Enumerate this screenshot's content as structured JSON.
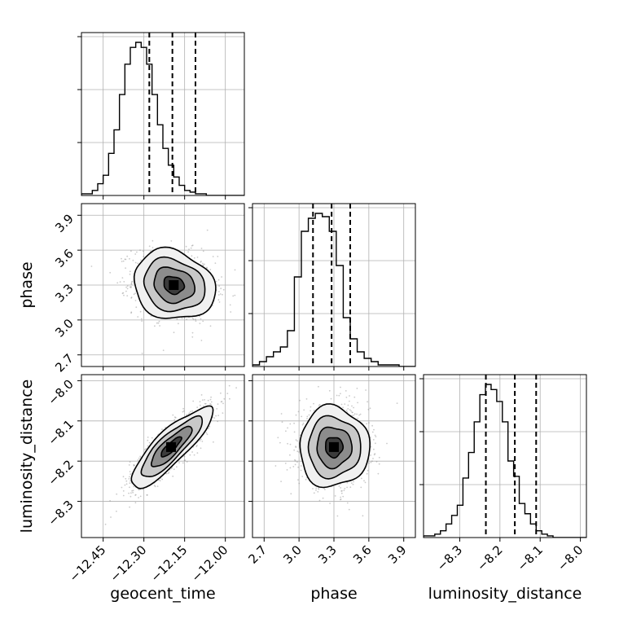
{
  "chart_data": {
    "type": "corner",
    "parameters": [
      {
        "key": "geocent_time",
        "label": "geocent_time",
        "range": [
          -12.53,
          -11.93
        ],
        "ticks": [
          -12.45,
          -12.3,
          -12.15,
          -12.0
        ],
        "tick_labels": [
          "−12.45",
          "−12.30",
          "−12.15",
          "−12.00"
        ],
        "quantiles": [
          -12.28,
          -12.195,
          -12.11
        ],
        "histogram": {
          "bin_start": -12.53,
          "bin_width": 0.02,
          "counts": [
            1,
            1,
            3,
            7,
            12,
            25,
            39,
            60,
            78,
            88,
            91,
            88,
            78,
            60,
            42,
            28,
            18,
            11,
            6,
            3,
            2,
            1,
            1,
            0,
            0,
            0,
            0,
            0,
            0,
            0
          ]
        }
      },
      {
        "key": "phase",
        "label": "phase",
        "range": [
          2.6,
          4.0
        ],
        "ticks": [
          2.7,
          3.0,
          3.3,
          3.6,
          3.9
        ],
        "tick_labels": [
          "2.7",
          "3.0",
          "3.3",
          "3.6",
          "3.9"
        ],
        "quantiles": [
          3.12,
          3.28,
          3.44
        ],
        "histogram": {
          "bin_start": 2.6,
          "bin_width": 0.06,
          "counts": [
            1,
            3,
            6,
            9,
            12,
            22,
            55,
            83,
            91,
            94,
            92,
            83,
            62,
            30,
            17,
            9,
            5,
            3,
            1,
            1,
            1,
            0,
            0,
            0
          ]
        }
      },
      {
        "key": "luminosity_distance",
        "label": "luminosity_distance",
        "range": [
          -8.39,
          -7.985
        ],
        "ticks": [
          -8.3,
          -8.2,
          -8.1,
          -8.0
        ],
        "tick_labels": [
          "−8.3",
          "−8.2",
          "−8.1",
          "−8.0"
        ],
        "quantiles": [
          -8.235,
          -8.163,
          -8.11
        ],
        "histogram": {
          "bin_start": -8.39,
          "bin_width": 0.014,
          "counts": [
            1,
            1,
            2,
            4,
            8,
            13,
            19,
            35,
            50,
            68,
            84,
            90,
            87,
            80,
            68,
            45,
            36,
            20,
            14,
            8,
            4,
            2,
            1,
            0,
            0,
            0,
            0,
            0,
            0
          ]
        }
      }
    ],
    "pairs": [
      {
        "x": "geocent_time",
        "y": "phase",
        "center": [
          -12.19,
          3.3
        ],
        "sigma": [
          0.075,
          0.15
        ],
        "rho": -0.15
      },
      {
        "x": "geocent_time",
        "y": "luminosity_distance",
        "center": [
          -12.2,
          -8.165
        ],
        "sigma": [
          0.075,
          0.05
        ],
        "rho": 0.85
      },
      {
        "x": "phase",
        "y": "luminosity_distance",
        "center": [
          3.3,
          -8.165
        ],
        "sigma": [
          0.15,
          0.05
        ],
        "rho": 0.0
      }
    ],
    "contour_levels_sigma": [
      0.5,
      1.0,
      1.5,
      2.0
    ],
    "grid": true,
    "colors": {
      "line": "#000000",
      "grid": "#b0b0b0",
      "points": "#8a8a8a"
    }
  }
}
